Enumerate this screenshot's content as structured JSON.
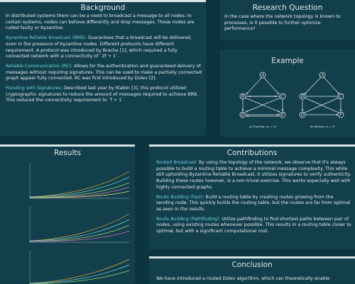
{
  "background": {
    "title": "Background",
    "intro": "In distributed systems there can be a need to broadcast a message to all nodes. In certain systems, nodes can behave differently and drop messages. These nodes are called faulty or byzantine.",
    "brb_term": "Byzantine Reliable Broadcast (BRB):",
    "brb_text": " Guarantees that a broadcast will be delivered, even in the presence of byzantine nodes. Different protocols have different requirement. A protocol was introduced by Bracha [1], which required a fully connected network with a connectivity of `2f + 1`.",
    "rc_term": "Reliable Communication (RC):",
    "rc_text": " Allows for the authentication and guaranteed delivery of messages without requiring signatures. This can be used to make a partially connected graph appear fully connected. RC was first introduced by Dolev [2].",
    "flood_term": "Flooding with Signatures:",
    "flood_text": " Described last year by Klabér [3], this protocol utilized cryptographic signatures to reduce the amount of messages required to achieve BRB. This reduced the connectivity requirement to `f + 1`."
  },
  "research": {
    "title": "Research Question",
    "text": "In the case where the network topology is known to processes, is it possible to further optimize performance?"
  },
  "example": {
    "title": "Example",
    "nodes": [
      "A",
      "B",
      "C",
      "D",
      "E",
      "F"
    ],
    "caption_left": "(a) Flooding, mₐ = 10",
    "caption_right": "(b) Routing, mₐ = 6"
  },
  "results": {
    "title": "Results"
  },
  "contributions": {
    "title": "Contributions",
    "routed_term": "Routed Broadcast:",
    "routed_text": " By using the topology of the network, we observe that it's always possible to build a routing table to achieve a minimal message complexity. This while still upholding Byzantine Reliable Broadcast, it utilizes signatures to verify authenticity. Building these routes however, is a non-trivial exercise. This works especially well with highly connected graphs.",
    "fast_term": "Route Building (Fast):",
    "fast_text": " Build a routing table by creating routes growing from the sending node. This quickly builds the routing table, but the routes are far from optimal as seen in the results.",
    "path_term": "Route Building (Pathfinding):",
    "path_text": " Utilize pathfinding to find shortest paths between pair of nodes, using existing routes whenever possible. This results in a routing table closer to optimal, but with a significant computational cost."
  },
  "conclusion": {
    "title": "Conclusion",
    "text": "We have introduced a routed Dolev algorithm, which can theoretically enable"
  },
  "colors": {
    "page_bg": "#0b3340",
    "panel_bg": "#133f4c",
    "accent": "#6fd3e0"
  }
}
